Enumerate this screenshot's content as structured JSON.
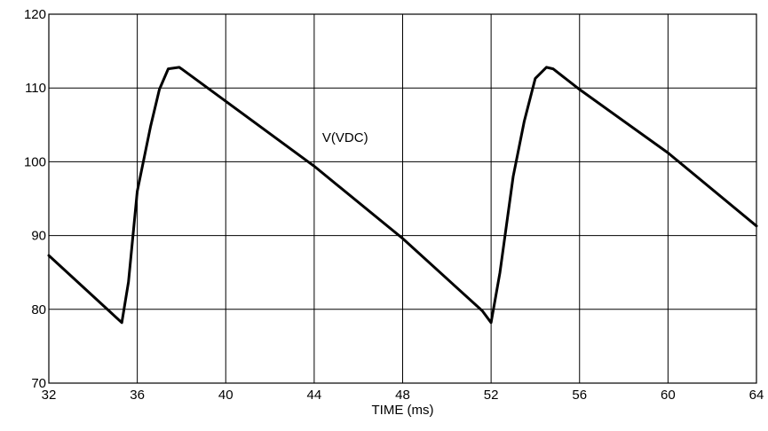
{
  "chart_data": {
    "type": "line",
    "xlabel": "TIME (ms)",
    "ylabel": "",
    "xlim": [
      32,
      64
    ],
    "ylim": [
      70,
      120
    ],
    "xticks": [
      32,
      36,
      40,
      44,
      48,
      52,
      56,
      60,
      64
    ],
    "yticks": [
      70,
      80,
      90,
      100,
      110,
      120
    ],
    "grid": true,
    "annotations": [
      {
        "text": "V(VDC)",
        "x": 45.4,
        "y": 103.3
      }
    ],
    "series": [
      {
        "x": [
          32.0,
          35.3,
          35.6,
          36.0,
          36.6,
          37.0,
          37.4,
          37.9,
          38.0,
          40.0,
          44.0,
          48.0,
          51.6,
          52.0,
          52.4,
          53.0,
          53.5,
          54.0,
          54.5,
          54.8,
          56.0,
          60.0,
          64.0
        ],
        "y": [
          87.3,
          78.2,
          83.7,
          96.0,
          104.8,
          109.8,
          112.6,
          112.8,
          112.6,
          108.2,
          99.4,
          89.6,
          79.8,
          78.2,
          85.0,
          98.0,
          105.5,
          111.3,
          112.8,
          112.6,
          109.8,
          101.2,
          91.3
        ]
      }
    ]
  }
}
